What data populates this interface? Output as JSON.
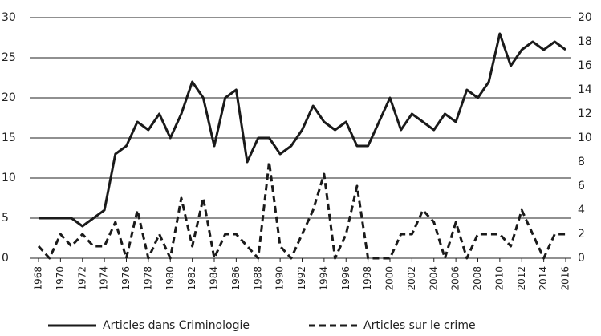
{
  "chart_data": {
    "type": "line",
    "x": [
      1968,
      1969,
      1970,
      1971,
      1972,
      1973,
      1974,
      1975,
      1976,
      1977,
      1978,
      1979,
      1980,
      1981,
      1982,
      1983,
      1984,
      1985,
      1986,
      1987,
      1988,
      1989,
      1990,
      1991,
      1992,
      1993,
      1994,
      1995,
      1996,
      1997,
      1998,
      1999,
      2000,
      2001,
      2002,
      2003,
      2004,
      2005,
      2006,
      2007,
      2008,
      2009,
      2010,
      2011,
      2012,
      2013,
      2014,
      2015,
      2016
    ],
    "xlim": [
      1968,
      2016
    ],
    "xticks": [
      1968,
      1970,
      1972,
      1974,
      1976,
      1978,
      1980,
      1982,
      1984,
      1986,
      1988,
      1990,
      1992,
      1994,
      1996,
      1998,
      2000,
      2002,
      2004,
      2006,
      2008,
      2010,
      2012,
      2014,
      2016
    ],
    "ylim": [
      0,
      30
    ],
    "yticks": [
      0,
      5,
      10,
      15,
      20,
      25,
      30
    ],
    "y2lim": [
      0,
      20
    ],
    "y2ticks": [
      0,
      2,
      4,
      6,
      8,
      10,
      12,
      14,
      16,
      18,
      20
    ],
    "grid": true,
    "legend": "bottom",
    "series": [
      {
        "name": "Articles dans Criminologie",
        "color": "#1a1a1a",
        "line_style": "solid",
        "values": [
          5,
          5,
          5,
          5,
          4,
          5,
          6,
          13,
          14,
          17,
          16,
          18,
          15,
          18,
          22,
          20,
          14,
          20,
          21,
          12,
          15,
          15,
          13,
          14,
          16,
          19,
          17,
          16,
          17,
          14,
          14,
          17,
          20,
          16,
          18,
          17,
          16,
          18,
          17,
          21,
          20,
          22,
          28,
          24,
          26,
          27,
          26,
          27,
          26
        ]
      },
      {
        "name": "Articles sur le crime",
        "color": "#1a1a1a",
        "line_style": "dashed",
        "axis": "y2",
        "values": [
          1,
          0,
          2,
          1,
          2,
          1,
          1,
          3,
          0,
          4,
          0,
          2,
          0,
          5,
          1,
          5,
          0,
          2,
          2,
          1,
          0,
          8,
          1,
          0,
          2,
          4,
          7,
          0,
          2,
          6,
          0,
          0,
          0,
          2,
          2,
          4,
          3,
          0,
          3,
          0,
          2,
          2,
          2,
          1,
          4,
          2,
          0,
          2,
          2
        ]
      }
    ]
  }
}
